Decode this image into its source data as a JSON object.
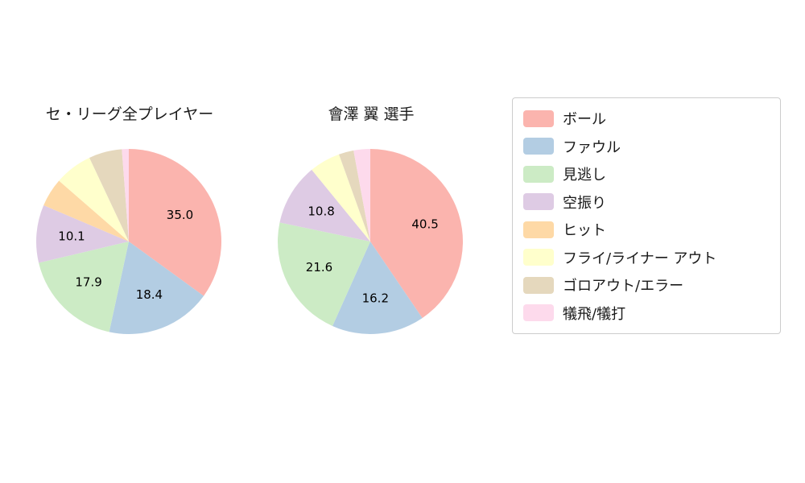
{
  "chart_data": {
    "type": "pie",
    "direction": "clockwise",
    "start_angle_deg": 0,
    "label_threshold": 10,
    "label_format": "one-decimal",
    "legend_position": "right",
    "legend": [
      "ボール",
      "ファウル",
      "見逃し",
      "空振り",
      "ヒット",
      "フライ/ライナー アウト",
      "ゴロアウト/エラー",
      "犠飛/犠打"
    ],
    "colors": [
      "#fbb4ae",
      "#b3cde3",
      "#ccebc5",
      "#decbe4",
      "#fed9a6",
      "#ffffcc",
      "#e5d8bd",
      "#fddaec"
    ],
    "pies": [
      {
        "title": "セ・リーグ全プレイヤー",
        "values": [
          35.0,
          18.4,
          17.9,
          10.1,
          5.0,
          6.6,
          5.8,
          1.2
        ],
        "shown_value_labels": [
          "35.0",
          "18.4",
          "17.9",
          "10.1"
        ]
      },
      {
        "title": "會澤 翼 選手",
        "values": [
          40.5,
          16.2,
          21.6,
          10.8,
          0,
          5.4,
          2.6,
          2.9
        ],
        "shown_value_labels": [
          "40.5",
          "16.2",
          "21.6",
          "10.8"
        ]
      }
    ]
  }
}
